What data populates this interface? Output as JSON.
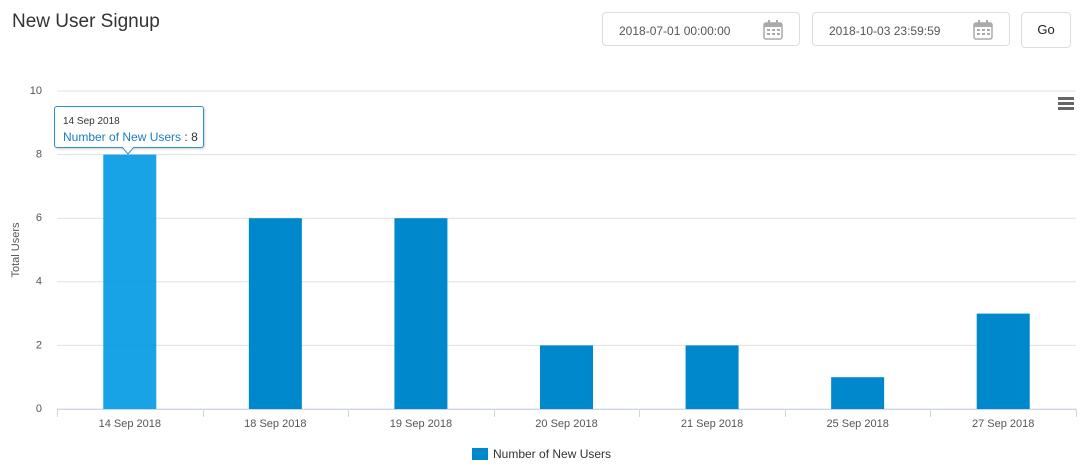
{
  "header": {
    "title": "New User Signup"
  },
  "filters": {
    "start": "2018-07-01 00:00:00",
    "end": "2018-10-03 23:59:59",
    "button": "Go"
  },
  "tooltip_separator": ":",
  "chart_data": {
    "type": "bar",
    "y_label": "Total Users",
    "categories": [
      "14 Sep 2018",
      "18 Sep 2018",
      "19 Sep 2018",
      "20 Sep 2018",
      "21 Sep 2018",
      "25 Sep 2018",
      "27 Sep 2018"
    ],
    "series": [
      {
        "name": "Number of New Users",
        "color": "#0088cc",
        "values": [
          8,
          6,
          6,
          2,
          2,
          1,
          3
        ]
      }
    ],
    "ylim": [
      0,
      10
    ],
    "yticks": [
      0,
      2,
      4,
      6,
      8,
      10
    ],
    "grid": true,
    "legend": "bottom"
  }
}
